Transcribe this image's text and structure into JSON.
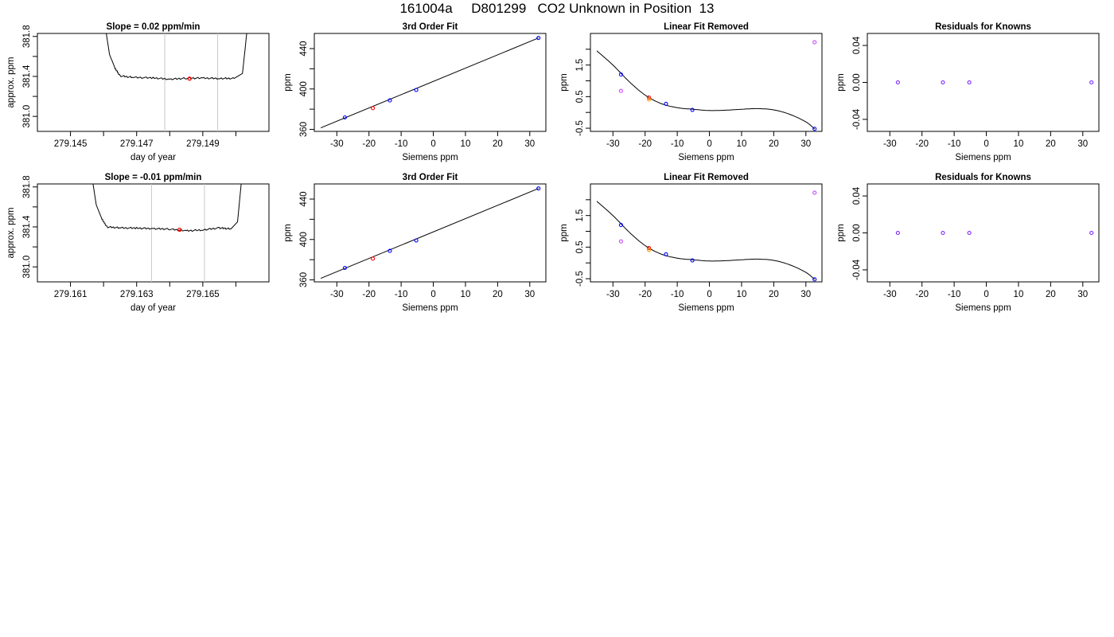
{
  "title": "161004a     D801299   CO2 Unknown in Position  13",
  "chart_data": [
    {
      "type": "line",
      "title": "Slope =  0.02  ppm/min",
      "xlabel": "day of year",
      "ylabel": "approx. ppm",
      "xlim": [
        279.144,
        279.151
      ],
      "ylim": [
        380.85,
        381.83
      ],
      "xticks": [
        "279.145",
        "279.146",
        "279.147",
        "279.148",
        "279.149",
        "279.150"
      ],
      "xtick_labels_shown": [
        "279.145",
        "279.147",
        "279.149"
      ],
      "yticks": [
        "381.0",
        "381.2",
        "381.4",
        "381.6",
        "381.8"
      ],
      "ytick_labels_shown": [
        "381.0",
        "381.4",
        "381.8"
      ],
      "vlines": [
        279.14785,
        279.14945
      ],
      "trace": [
        [
          279.14605,
          381.9
        ],
        [
          279.14618,
          381.62
        ],
        [
          279.14635,
          381.48
        ],
        [
          279.1465,
          381.405
        ],
        [
          279.1469,
          381.39
        ],
        [
          279.1475,
          381.385
        ],
        [
          279.148,
          381.372
        ],
        [
          279.1485,
          381.382
        ],
        [
          279.149,
          381.383
        ],
        [
          279.1495,
          381.38
        ],
        [
          279.14995,
          381.38
        ],
        [
          279.1502,
          381.43
        ],
        [
          279.15035,
          381.9
        ]
      ],
      "highlight_point": [
        279.1486,
        381.378
      ],
      "highlight_color": "#ff0000"
    },
    {
      "type": "scatter",
      "title": "3rd Order Fit",
      "xlabel": "Siemens ppm",
      "ylabel": "ppm",
      "xlim": [
        -37,
        35
      ],
      "ylim": [
        358,
        455
      ],
      "xticks": [
        "-30",
        "-20",
        "-10",
        "0",
        "10",
        "20",
        "30"
      ],
      "yticks": [
        "360",
        "380",
        "400",
        "420",
        "440"
      ],
      "ytick_labels_shown": [
        "360",
        "400",
        "440"
      ],
      "points": [
        {
          "x": -27.5,
          "y": 371.8,
          "color": "#0000ff"
        },
        {
          "x": -18.8,
          "y": 381.0,
          "color": "#ff0000"
        },
        {
          "x": -13.5,
          "y": 388.7,
          "color": "#0000ff"
        },
        {
          "x": -5.3,
          "y": 399.0,
          "color": "#0000ff"
        },
        {
          "x": 32.7,
          "y": 450.5,
          "color": "#0000ff"
        }
      ],
      "fit_line": [
        [
          -35,
          361.5
        ],
        [
          32.7,
          450.5
        ]
      ]
    },
    {
      "type": "scatter",
      "title": "Linear Fit Removed",
      "xlabel": "Siemens ppm",
      "ylabel": "ppm",
      "xlim": [
        -37,
        35
      ],
      "ylim": [
        -0.6,
        2.5
      ],
      "xticks": [
        "-30",
        "-20",
        "-10",
        "0",
        "10",
        "20",
        "30"
      ],
      "yticks": [
        "-0.5",
        "0.0",
        "0.5",
        "1.0",
        "1.5",
        "2.0"
      ],
      "ytick_labels_shown": [
        "-0.5",
        "0.5",
        "1.5"
      ],
      "points": [
        {
          "x": -27.5,
          "y": 1.2,
          "color": "#0000ff"
        },
        {
          "x": -27.5,
          "y": 0.68,
          "color": "#cc44ff"
        },
        {
          "x": -18.8,
          "y": 0.47,
          "color": "#ff0000"
        },
        {
          "x": -18.8,
          "y": 0.41,
          "color": "#ff9900"
        },
        {
          "x": -13.5,
          "y": 0.27,
          "color": "#0000ff"
        },
        {
          "x": -5.3,
          "y": 0.08,
          "color": "#0000ff"
        },
        {
          "x": 32.7,
          "y": 2.22,
          "color": "#cc44ff"
        },
        {
          "x": 32.7,
          "y": -0.52,
          "color": "#0000ff"
        }
      ],
      "curve": [
        [
          -35,
          1.95
        ],
        [
          -30,
          1.5
        ],
        [
          -25,
          0.98
        ],
        [
          -20,
          0.55
        ],
        [
          -15,
          0.28
        ],
        [
          -10,
          0.15
        ],
        [
          -5,
          0.1
        ],
        [
          0,
          0.06
        ],
        [
          5,
          0.07
        ],
        [
          10,
          0.1
        ],
        [
          15,
          0.12
        ],
        [
          20,
          0.08
        ],
        [
          25,
          -0.06
        ],
        [
          30,
          -0.3
        ],
        [
          32.7,
          -0.52
        ]
      ]
    },
    {
      "type": "scatter",
      "title": "Residuals for Knowns",
      "xlabel": "Siemens ppm",
      "ylabel": "ppm",
      "xlim": [
        -37,
        35
      ],
      "ylim": [
        -0.053,
        0.053
      ],
      "xticks": [
        "-30",
        "-20",
        "-10",
        "0",
        "10",
        "20",
        "30"
      ],
      "yticks": [
        "-0.04",
        "0.00",
        "0.04"
      ],
      "points": [
        {
          "x": -27.5,
          "y": 0,
          "color": "#7722ff"
        },
        {
          "x": -13.5,
          "y": 0,
          "color": "#7722ff"
        },
        {
          "x": -5.3,
          "y": 0,
          "color": "#7722ff"
        },
        {
          "x": 32.7,
          "y": 0,
          "color": "#7722ff"
        }
      ]
    },
    {
      "type": "line",
      "title": "Slope =  -0.01  ppm/min",
      "xlabel": "day of year",
      "ylabel": "approx. ppm",
      "xlim": [
        279.16,
        279.167
      ],
      "ylim": [
        380.85,
        381.83
      ],
      "xticks": [
        "279.161",
        "279.162",
        "279.163",
        "279.164",
        "279.165",
        "279.166"
      ],
      "xtick_labels_shown": [
        "279.161",
        "279.163",
        "279.165"
      ],
      "yticks": [
        "381.0",
        "381.2",
        "381.4",
        "381.6",
        "381.8"
      ],
      "ytick_labels_shown": [
        "381.0",
        "381.4",
        "381.8"
      ],
      "vlines": [
        279.16345,
        279.16505
      ],
      "trace": [
        [
          279.16165,
          381.9
        ],
        [
          279.16178,
          381.62
        ],
        [
          279.16195,
          381.48
        ],
        [
          279.1621,
          381.4
        ],
        [
          279.1625,
          381.39
        ],
        [
          279.163,
          381.388
        ],
        [
          279.1635,
          381.383
        ],
        [
          279.164,
          381.378
        ],
        [
          279.1645,
          381.36
        ],
        [
          279.165,
          381.37
        ],
        [
          279.1655,
          381.39
        ],
        [
          279.16585,
          381.38
        ],
        [
          279.16605,
          381.45
        ],
        [
          279.16618,
          381.9
        ]
      ],
      "highlight_point": [
        279.1643,
        381.372
      ],
      "highlight_color": "#ff0000"
    },
    {
      "type": "scatter",
      "title": "3rd Order Fit",
      "xlabel": "Siemens ppm",
      "ylabel": "ppm",
      "xlim": [
        -37,
        35
      ],
      "ylim": [
        358,
        455
      ],
      "xticks": [
        "-30",
        "-20",
        "-10",
        "0",
        "10",
        "20",
        "30"
      ],
      "yticks": [
        "360",
        "380",
        "400",
        "420",
        "440"
      ],
      "ytick_labels_shown": [
        "360",
        "400",
        "440"
      ],
      "points": [
        {
          "x": -27.5,
          "y": 371.8,
          "color": "#0000ff"
        },
        {
          "x": -18.8,
          "y": 381.0,
          "color": "#ff0000"
        },
        {
          "x": -13.5,
          "y": 388.7,
          "color": "#0000ff"
        },
        {
          "x": -5.3,
          "y": 399.0,
          "color": "#0000ff"
        },
        {
          "x": 32.7,
          "y": 450.5,
          "color": "#0000ff"
        }
      ],
      "fit_line": [
        [
          -35,
          361.5
        ],
        [
          32.7,
          450.5
        ]
      ]
    },
    {
      "type": "scatter",
      "title": "Linear Fit Removed",
      "xlabel": "Siemens ppm",
      "ylabel": "ppm",
      "xlim": [
        -37,
        35
      ],
      "ylim": [
        -0.6,
        2.5
      ],
      "xticks": [
        "-30",
        "-20",
        "-10",
        "0",
        "10",
        "20",
        "30"
      ],
      "yticks": [
        "-0.5",
        "0.0",
        "0.5",
        "1.0",
        "1.5",
        "2.0"
      ],
      "ytick_labels_shown": [
        "-0.5",
        "0.5",
        "1.5"
      ],
      "points": [
        {
          "x": -27.5,
          "y": 1.2,
          "color": "#0000ff"
        },
        {
          "x": -27.5,
          "y": 0.68,
          "color": "#cc44ff"
        },
        {
          "x": -18.8,
          "y": 0.47,
          "color": "#ff0000"
        },
        {
          "x": -18.8,
          "y": 0.41,
          "color": "#ff9900"
        },
        {
          "x": -13.5,
          "y": 0.27,
          "color": "#0000ff"
        },
        {
          "x": -5.3,
          "y": 0.08,
          "color": "#0000ff"
        },
        {
          "x": 32.7,
          "y": 2.22,
          "color": "#cc44ff"
        },
        {
          "x": 32.7,
          "y": -0.52,
          "color": "#0000ff"
        }
      ],
      "curve": [
        [
          -35,
          1.95
        ],
        [
          -30,
          1.5
        ],
        [
          -25,
          0.98
        ],
        [
          -20,
          0.55
        ],
        [
          -15,
          0.28
        ],
        [
          -10,
          0.15
        ],
        [
          -5,
          0.1
        ],
        [
          0,
          0.06
        ],
        [
          5,
          0.07
        ],
        [
          10,
          0.1
        ],
        [
          15,
          0.12
        ],
        [
          20,
          0.08
        ],
        [
          25,
          -0.06
        ],
        [
          30,
          -0.3
        ],
        [
          32.7,
          -0.52
        ]
      ]
    },
    {
      "type": "scatter",
      "title": "Residuals for Knowns",
      "xlabel": "Siemens ppm",
      "ylabel": "ppm",
      "xlim": [
        -37,
        35
      ],
      "ylim": [
        -0.053,
        0.053
      ],
      "xticks": [
        "-30",
        "-20",
        "-10",
        "0",
        "10",
        "20",
        "30"
      ],
      "yticks": [
        "-0.04",
        "0.00",
        "0.04"
      ],
      "points": [
        {
          "x": -27.5,
          "y": 0,
          "color": "#7722ff"
        },
        {
          "x": -13.5,
          "y": 0,
          "color": "#7722ff"
        },
        {
          "x": -5.3,
          "y": 0,
          "color": "#7722ff"
        },
        {
          "x": 32.7,
          "y": 0,
          "color": "#7722ff"
        }
      ]
    }
  ]
}
